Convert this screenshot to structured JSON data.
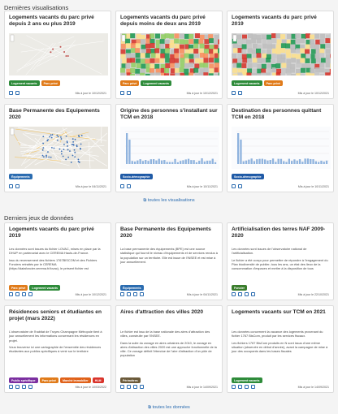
{
  "sections": [
    {
      "heading": "Dernières visualisations",
      "link": "toutes les visualisations",
      "cards": [
        {
          "title": "Logements vacants du parc privé depuis 2 ans ou plus 2019",
          "tags": [
            {
              "label": "Logement vacants",
              "color": "#2e8b3a"
            },
            {
              "label": "Parc privé",
              "color": "#e07b1a"
            }
          ],
          "date": "Mis à jour le 10/12/2021",
          "image": "map-light"
        },
        {
          "title": "Logements vacants du parc privé depuis moins de deux ans 2019",
          "tags": [
            {
              "label": "Parc privé",
              "color": "#e07b1a"
            },
            {
              "label": "Logement vacants",
              "color": "#2e8b3a"
            }
          ],
          "date": "Mis à jour le 10/12/2021",
          "image": "map-color"
        },
        {
          "title": "Logements vacants du parc privé 2019",
          "tags": [
            {
              "label": "Logement vacants",
              "color": "#2e8b3a"
            },
            {
              "label": "Parc privé",
              "color": "#e07b1a"
            }
          ],
          "date": "Mis à jour le 10/12/2021",
          "image": "map-mixed"
        },
        {
          "title": "Base Permanente des Equipements 2020",
          "tags": [
            {
              "label": "Équipements",
              "color": "#2b6cb0"
            }
          ],
          "date": "Mis à jour le 04/11/2021",
          "image": "map-street"
        },
        {
          "title": "Origine des personnes s'installant sur TCM en 2018",
          "tags": [
            {
              "label": "Socio-démographie",
              "color": "#1f5aa6"
            }
          ],
          "date": "Mis à jour le 10/11/2021",
          "image": "chart"
        },
        {
          "title": "Destination des personnes quittant TCM en 2018",
          "tags": [
            {
              "label": "Socio-démographie",
              "color": "#1f5aa6"
            }
          ],
          "date": "Mis à jour le 10/11/2021",
          "image": "chart"
        }
      ]
    },
    {
      "heading": "Derniers jeux de données",
      "link": "toutes les données",
      "cards": [
        {
          "title": "Logements vacants du parc privé 2019",
          "paragraphs": [
            "Les données sont issues du fichier LOVAC, mises en place par la DHUP en partenariat avec le CEREMA Hauts-de-France.",
            "Issu du recensement des fichiers 1767BISCOM et des Fichiers Fonciers retraités par le CEREMA (https://datafoncier.cerema.fr/lovac), le présent fichier est"
          ],
          "tags": [
            {
              "label": "Parc privé",
              "color": "#e07b1a"
            },
            {
              "label": "Logement vacants",
              "color": "#2e8b3a"
            }
          ],
          "date": "Mis à jour le 10/12/2021"
        },
        {
          "title": "Base Permanente des Equipements 2020",
          "paragraphs": [
            "La base permanente des équipements (BPE) est une source statistique qui fournit le niveau d'équipements et de services rendus à la population sur un territoire. Elle est issue de l'INSEE et est mise à jour annuellement."
          ],
          "tags": [
            {
              "label": "Équipements",
              "color": "#2b6cb0"
            }
          ],
          "date": "Mis à jour le 04/11/2021"
        },
        {
          "title": "Artificialisation des terres NAF 2009-2020",
          "paragraphs": [
            "Les données sont issues de l'observatoire national de l'artificialisation.",
            "Le fichier a été conçu pour permettre de répondre à l'engagement du Plan biodiversité de publier, tous les ans, un état des lieux de la consommation d'espaces et mettre à la disposition de tous"
          ],
          "tags": [
            {
              "label": "Foncier",
              "color": "#3a7d2c"
            }
          ],
          "date": "Mis à jour le 22/10/2021"
        },
        {
          "title": "Résidences seniors et étudiantes en projet (mars 2022)",
          "paragraphs": [
            "L'observatoire de l'habitat de Troyes Champagne Métropole tient à jour annuellement les informations concernant les résidences en projet.",
            "Vous trouverez ici une cartographie de l'ensemble des résidences étudiantes aux publics spécifiques à venir sur le territoire"
          ],
          "tags": [
            {
              "label": "Public spécifique",
              "color": "#7b2fa0"
            },
            {
              "label": "Parc privé",
              "color": "#e07b1a"
            },
            {
              "label": "Marché immobilier",
              "color": "#e0621a"
            },
            {
              "label": "HLM",
              "color": "#d9342b"
            }
          ],
          "date": "Mis à jour le 10/03/2022"
        },
        {
          "title": "Aires d'attraction des villes 2020",
          "paragraphs": [
            "Le fichier est issu de la base nationale des aires d'attraction des villes, construite par l'INSEE.",
            "Dans la suite du zonage en aires urbaines de 2010, le zonage en aires d'attraction des villes 2020 est une approche fonctionnelle de la ville. Ce zonage définit l'étendue de l'aire d'attraction d'un pôle de population"
          ],
          "tags": [
            {
              "label": "Périmètres",
              "color": "#6b5a3a"
            }
          ],
          "date": "Mis à jour le 14/09/2021"
        },
        {
          "title": "Logements vacants sur TCM en 2021",
          "paragraphs": [
            "Les données concernent la vacance des logements provenant du fichier 1767 BisCom, produit par les services fiscaux.",
            "Les fichiers 1767 BisCom produits en N sont issus d'une même situation (observée en début d'année), avant la campagne de mise à jour des occupants dans les bases fiscales"
          ],
          "tags": [
            {
              "label": "Logement vacants",
              "color": "#2e8b3a"
            }
          ],
          "date": "Mis à jour le 14/09/2021"
        }
      ]
    }
  ]
}
